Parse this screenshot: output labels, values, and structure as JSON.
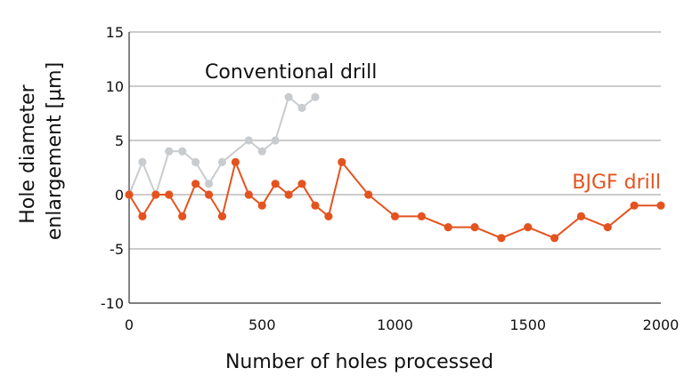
{
  "chart_data": {
    "type": "line",
    "xlabel": "Number of holes processed",
    "ylabel_lines": [
      "Hole diameter",
      "enlargement [µm]"
    ],
    "xlim": [
      0,
      2000
    ],
    "ylim": [
      -10,
      15
    ],
    "xticks": [
      0,
      500,
      1000,
      1500,
      2000
    ],
    "yticks": [
      -10,
      -5,
      0,
      5,
      10,
      15
    ],
    "xtick_labels": [
      "0",
      "500",
      "1000",
      "1500",
      "2000"
    ],
    "ytick_labels": [
      "-10",
      "-5",
      "0",
      "5",
      "10",
      "15"
    ],
    "grid": "horizontal",
    "series": [
      {
        "name": "Conventional drill",
        "color": "#c8cccf",
        "x": [
          0,
          50,
          100,
          150,
          200,
          250,
          300,
          350,
          450,
          500,
          550,
          600,
          650,
          700
        ],
        "y": [
          0,
          3,
          0,
          4,
          4,
          3,
          1,
          3,
          5,
          4,
          5,
          9,
          8,
          9
        ]
      },
      {
        "name": "BJGF drill",
        "color": "#e4531f",
        "x": [
          0,
          50,
          100,
          150,
          200,
          250,
          300,
          350,
          400,
          450,
          500,
          550,
          600,
          650,
          700,
          750,
          800,
          900,
          1000,
          1100,
          1200,
          1300,
          1400,
          1500,
          1600,
          1700,
          1800,
          1900,
          2000
        ],
        "y": [
          0,
          -2,
          0,
          0,
          -2,
          1,
          0,
          -2,
          3,
          0,
          -1,
          1,
          0,
          1,
          -1,
          -2,
          3,
          0,
          -2,
          -2,
          -3,
          -3,
          -4,
          -3,
          -4,
          -2,
          -3,
          -1,
          -1
        ]
      }
    ]
  }
}
